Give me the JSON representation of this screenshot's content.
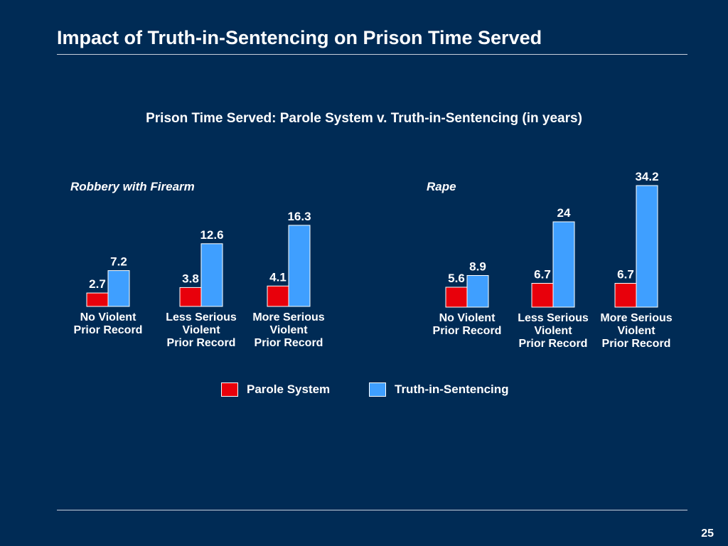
{
  "slide": {
    "title": "Impact of Truth-in-Sentencing on Prison Time Served",
    "page_number": "25"
  },
  "colors": {
    "background": "#002B55",
    "parole": "#E8000B",
    "truth": "#3F9FFF",
    "text": "#FFFFFF"
  },
  "legend": {
    "items": [
      {
        "label": "Parole System",
        "color": "#E8000B"
      },
      {
        "label": "Truth-in-Sentencing",
        "color": "#3F9FFF"
      }
    ]
  },
  "chart_data": {
    "type": "bar",
    "title": "Prison Time Served: Parole System v. Truth-in-Sentencing (in years)",
    "panels": [
      {
        "name": "Robbery with Firearm",
        "categories": [
          [
            "No Violent",
            "Prior Record"
          ],
          [
            "Less Serious",
            "Violent",
            "Prior Record"
          ],
          [
            "More Serious",
            "Violent",
            "Prior Record"
          ]
        ],
        "series": [
          {
            "name": "Parole System",
            "values": [
              2.7,
              3.8,
              4.1
            ],
            "labels": [
              "2.7",
              "3.8",
              "4.1"
            ]
          },
          {
            "name": "Truth-in-Sentencing",
            "values": [
              7.2,
              12.6,
              16.3
            ],
            "labels": [
              "7.2",
              "12.6",
              "16.3"
            ]
          }
        ]
      },
      {
        "name": "Rape",
        "categories": [
          [
            "No Violent",
            "Prior Record"
          ],
          [
            "Less Serious",
            "Violent",
            "Prior Record"
          ],
          [
            "More Serious",
            "Violent",
            "Prior Record"
          ]
        ],
        "series": [
          {
            "name": "Parole System",
            "values": [
              5.6,
              6.7,
              6.7
            ],
            "labels": [
              "5.6",
              "6.7",
              "6.7"
            ]
          },
          {
            "name": "Truth-in-Sentencing",
            "values": [
              8.9,
              24,
              34.2
            ],
            "labels": [
              "8.9",
              "24",
              "34.2"
            ]
          }
        ]
      }
    ],
    "legend": "bottom-center",
    "grid": false
  }
}
